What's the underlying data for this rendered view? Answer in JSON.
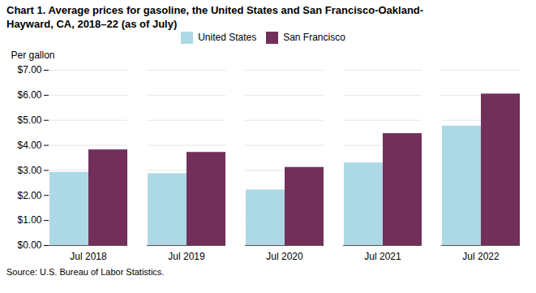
{
  "chart_data": {
    "type": "bar",
    "title": "Chart 1. Average prices for gasoline, the United States and San Francisco-Oakland-\nHayward, CA, 2018–22 (as of July)",
    "ylabel": "Per gallon",
    "source": "Source: U.S. Bureau of Labor Statistics.",
    "categories": [
      "Jul 2018",
      "Jul 2019",
      "Jul 2020",
      "Jul 2021",
      "Jul 2022"
    ],
    "series": [
      {
        "name": "United States",
        "color": "#add8e6",
        "values": [
          2.92,
          2.87,
          2.22,
          3.3,
          4.77
        ]
      },
      {
        "name": "San Francisco",
        "color": "#722F5A",
        "values": [
          3.82,
          3.72,
          3.12,
          4.47,
          6.05
        ]
      }
    ],
    "ylim": [
      0,
      7.0
    ],
    "yticks": [
      {
        "value": 0.0,
        "label": "$0.00"
      },
      {
        "value": 1.0,
        "label": "$1.00"
      },
      {
        "value": 2.0,
        "label": "$2.00"
      },
      {
        "value": 3.0,
        "label": "$3.00"
      },
      {
        "value": 4.0,
        "label": "$4.00"
      },
      {
        "value": 5.0,
        "label": "$5.00"
      },
      {
        "value": 6.0,
        "label": "$6.00"
      },
      {
        "value": 7.0,
        "label": "$7.00"
      }
    ],
    "grid": true,
    "legend": "top"
  }
}
